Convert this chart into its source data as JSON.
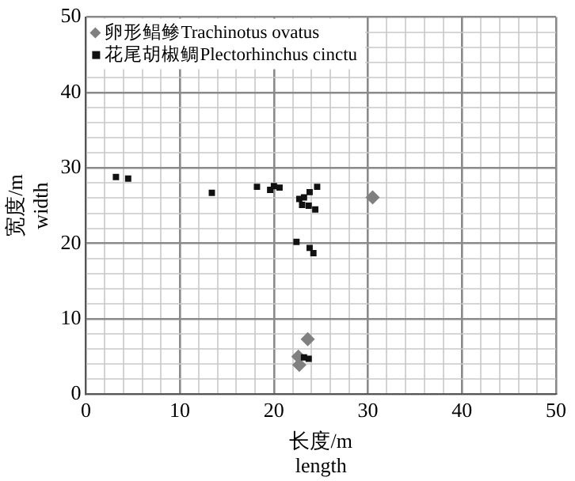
{
  "chart_data": {
    "type": "scatter",
    "xlabel": "长度/m\nlength",
    "ylabel": "宽度/m\nwidth",
    "xlim": [
      0,
      50
    ],
    "ylim": [
      0,
      50
    ],
    "xticks": [
      0,
      {
        "value": 2,
        "label": null
      },
      {
        "value": 4,
        "label": null
      },
      {
        "value": 6,
        "label": null
      },
      {
        "value": 8,
        "label": null
      },
      10,
      {
        "value": 12,
        "label": null
      },
      {
        "value": 14,
        "label": null
      },
      {
        "value": 16,
        "label": null
      },
      {
        "value": 18,
        "label": null
      },
      20,
      {
        "value": 22,
        "label": null
      },
      {
        "value": 24,
        "label": null
      },
      {
        "value": 26,
        "label": null
      },
      {
        "value": 28,
        "label": null
      },
      30,
      {
        "value": 32,
        "label": null
      },
      {
        "value": 34,
        "label": null
      },
      {
        "value": 36,
        "label": null
      },
      {
        "value": 38,
        "label": null
      },
      40,
      {
        "value": 42,
        "label": null
      },
      {
        "value": 44,
        "label": null
      },
      {
        "value": 46,
        "label": null
      },
      {
        "value": 48,
        "label": null
      },
      50
    ],
    "yticks": [
      0,
      {
        "value": 2,
        "label": null
      },
      {
        "value": 4,
        "label": null
      },
      {
        "value": 6,
        "label": null
      },
      {
        "value": 8,
        "label": null
      },
      10,
      {
        "value": 12,
        "label": null
      },
      {
        "value": 14,
        "label": null
      },
      {
        "value": 16,
        "label": null
      },
      {
        "value": 18,
        "label": null
      },
      20,
      {
        "value": 22,
        "label": null
      },
      {
        "value": 24,
        "label": null
      },
      {
        "value": 26,
        "label": null
      },
      {
        "value": 28,
        "label": null
      },
      30,
      {
        "value": 32,
        "label": null
      },
      {
        "value": 34,
        "label": null
      },
      {
        "value": 36,
        "label": null
      },
      {
        "value": 38,
        "label": null
      },
      40,
      {
        "value": 42,
        "label": null
      },
      {
        "value": 44,
        "label": null
      },
      {
        "value": 46,
        "label": null
      },
      {
        "value": 48,
        "label": null
      },
      50
    ],
    "grid": true,
    "legend": "top left",
    "series": [
      {
        "name": "卵形鲳鲹Trachinotus ovatus",
        "color": "#808080",
        "marker": "diamond",
        "x": [
          30.5,
          23.6,
          22.7,
          22.6
        ],
        "values": [
          26.1,
          7.3,
          3.9,
          5.0
        ]
      },
      {
        "name": "花尾胡椒鲷Plectorhinchus cinctu",
        "color": "#111111",
        "marker": "square",
        "x": [
          3.2,
          4.5,
          13.4,
          18.2,
          19.6,
          20.0,
          20.6,
          22.4,
          23.8,
          24.2,
          24.6,
          23.8,
          23.2,
          22.7,
          23.0,
          23.7,
          24.4,
          23.2,
          23.7
        ],
        "values": [
          28.8,
          28.6,
          26.7,
          27.5,
          27.1,
          27.6,
          27.4,
          20.2,
          19.4,
          18.7,
          27.5,
          26.8,
          26.1,
          25.9,
          25.1,
          25.0,
          24.5,
          4.9,
          4.7
        ]
      }
    ]
  }
}
